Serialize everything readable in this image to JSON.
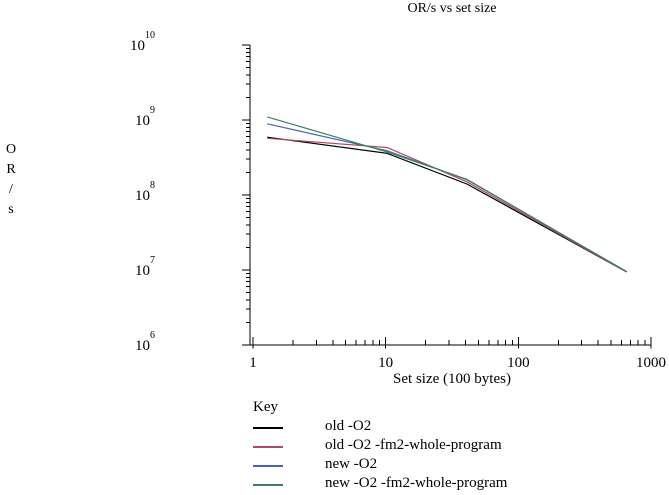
{
  "chart_data": {
    "type": "line",
    "title": "OR/s vs set size",
    "xlabel": "Set size (100 bytes)",
    "ylabel": "OR/s",
    "x_scale": "log",
    "y_scale": "log",
    "xlim": [
      1,
      1000
    ],
    "ylim": [
      1000000,
      10000000000
    ],
    "x_tick_exponents": [
      0,
      1,
      2,
      3
    ],
    "x_tick_labels": [
      "1",
      "10",
      "100",
      "1000"
    ],
    "y_tick_exponents": [
      6,
      7,
      8,
      9,
      10
    ],
    "y_tick_base": "10",
    "grid": false,
    "x": [
      1.28,
      10.24,
      40.96,
      655.36
    ],
    "series": [
      {
        "name": "old -O2",
        "color": "#000000",
        "values": [
          590000000,
          360000000,
          140000000,
          9400000
        ]
      },
      {
        "name": "old -O2 -fm2-whole-program",
        "color": "#b04a62",
        "values": [
          570000000,
          430000000,
          150000000,
          9400000
        ]
      },
      {
        "name": "new -O2",
        "color": "#4664b4",
        "values": [
          890000000,
          390000000,
          160000000,
          9500000
        ]
      },
      {
        "name": "new -O2 -fm2-whole-program",
        "color": "#3e805e",
        "values": [
          1100000000,
          375000000,
          162000000,
          9500000
        ]
      }
    ],
    "legend": {
      "title": "Key",
      "position": "below"
    }
  }
}
